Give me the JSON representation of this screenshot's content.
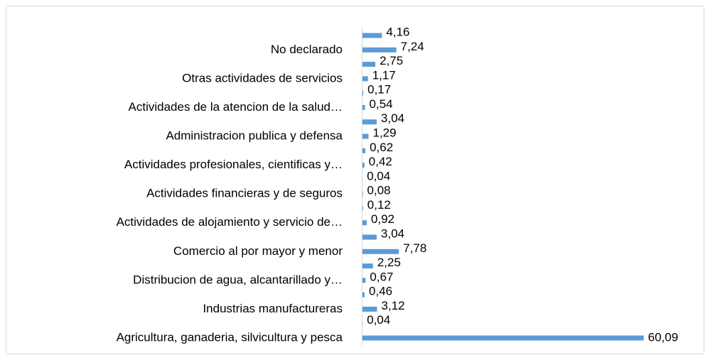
{
  "chart_data": {
    "type": "hbar",
    "categories": [
      "Agricultura, ganaderia, silvicultura y pesca",
      null,
      "Industrias manufactureras",
      null,
      "Distribucion de agua, alcantarillado y…",
      null,
      "Comercio al por mayor y menor",
      null,
      "Actividades de alojamiento y servicio de…",
      null,
      "Actividades financieras y de seguros",
      null,
      "Actividades profesionales, cientificas y…",
      null,
      "Administracion publica y defensa",
      null,
      "Actividades de la atencion de la salud…",
      null,
      "Otras actividades de servicios",
      null,
      "No declarado",
      null
    ],
    "values": [
      60.09,
      0.04,
      3.12,
      0.46,
      0.67,
      2.25,
      7.78,
      3.04,
      0.92,
      0.12,
      0.08,
      0.04,
      0.42,
      0.62,
      1.29,
      3.04,
      0.54,
      0.17,
      1.17,
      2.75,
      7.24,
      4.16
    ],
    "value_labels": [
      "60,09",
      "0,04",
      "3,12",
      "0,46",
      "0,67",
      "2,25",
      "7,78",
      "3,04",
      "0,92",
      "0,12",
      "0,08",
      "0,04",
      "0,42",
      "0,62",
      "1,29",
      "3,04",
      "0,54",
      "0,17",
      "1,17",
      "2,75",
      "7,24",
      "4,16"
    ],
    "color": "#5b9bd5",
    "xlim": [
      0,
      70
    ]
  }
}
